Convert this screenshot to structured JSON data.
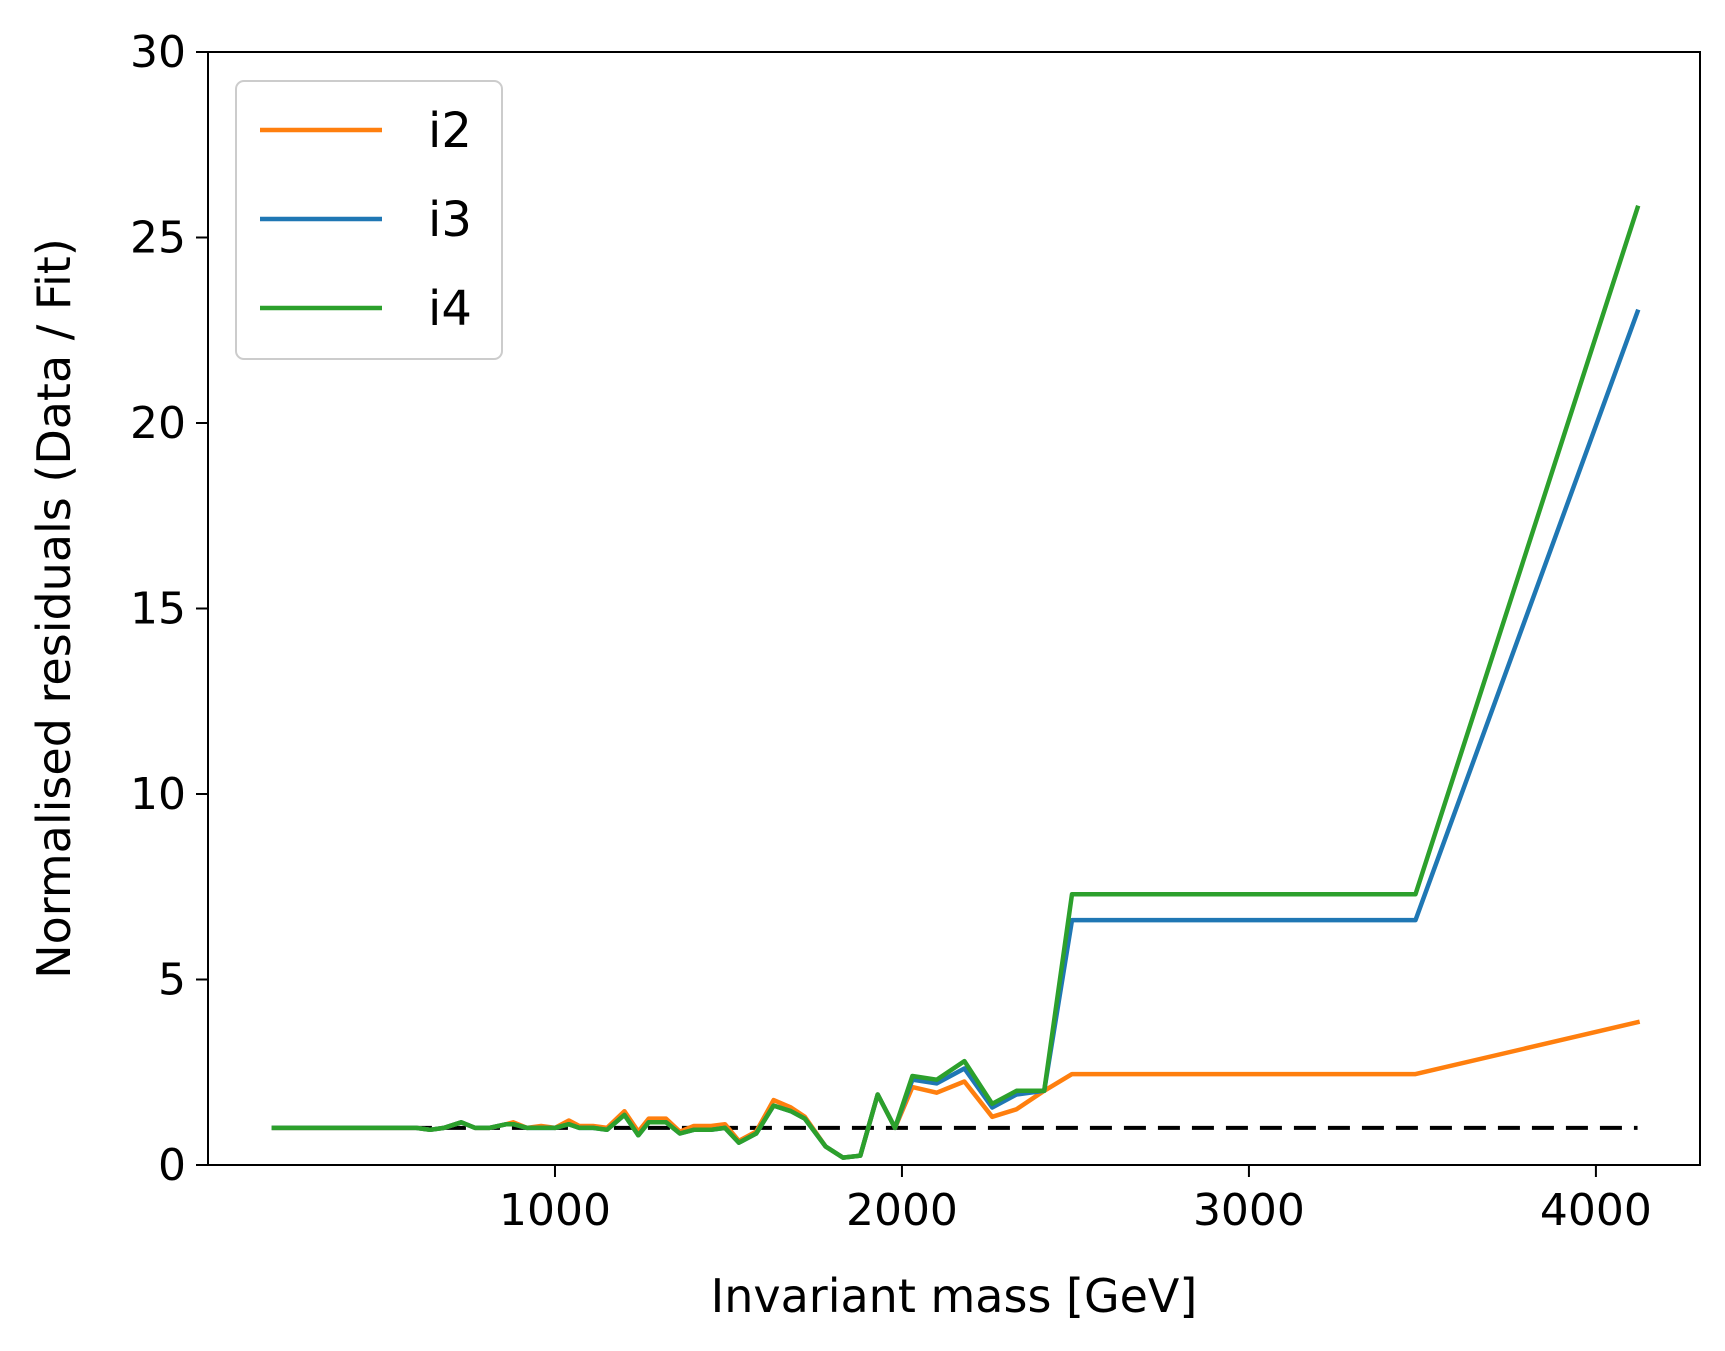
{
  "chart_data": {
    "type": "line",
    "title": "",
    "xlabel": "Invariant mass [GeV]",
    "ylabel": "Normalised residuals (Data / Fit)",
    "xlim": [
      0,
      4300
    ],
    "ylim": [
      0,
      30
    ],
    "xticks": [
      1000,
      2000,
      3000,
      4000
    ],
    "xtick_labels": [
      "1000",
      "2000",
      "3000",
      "4000"
    ],
    "yticks": [
      0,
      5,
      10,
      15,
      20,
      25,
      30
    ],
    "ytick_labels": [
      "0",
      "5",
      "10",
      "15",
      "20",
      "25",
      "30"
    ],
    "grid": false,
    "legend_position": "top-left",
    "reference_line": {
      "y": 1.0,
      "style": "dashed",
      "color": "#000000",
      "x_range": [
        190,
        4120
      ]
    },
    "x": [
      190,
      230,
      270,
      320,
      360,
      400,
      440,
      480,
      520,
      560,
      600,
      640,
      680,
      730,
      770,
      810,
      860,
      880,
      920,
      960,
      1000,
      1040,
      1070,
      1110,
      1150,
      1200,
      1240,
      1270,
      1320,
      1360,
      1400,
      1450,
      1490,
      1530,
      1580,
      1630,
      1680,
      1720,
      1780,
      1830,
      1880,
      1930,
      1980,
      2030,
      2100,
      2180,
      2260,
      2330,
      2410,
      2490,
      3480,
      4120
    ],
    "series": [
      {
        "name": "i2",
        "color": "#ff7f0e",
        "values": [
          1.0,
          1.0,
          1.0,
          1.0,
          1.0,
          1.0,
          1.0,
          1.0,
          1.0,
          1.0,
          1.0,
          0.95,
          1.0,
          1.15,
          1.0,
          1.0,
          1.1,
          1.15,
          1.0,
          1.05,
          1.0,
          1.2,
          1.05,
          1.05,
          1.0,
          1.45,
          0.9,
          1.25,
          1.25,
          0.9,
          1.05,
          1.05,
          1.1,
          0.65,
          0.9,
          1.75,
          1.55,
          1.3,
          0.5,
          0.2,
          0.25,
          1.9,
          1.0,
          2.1,
          1.95,
          2.25,
          1.3,
          1.5,
          2.0,
          2.45,
          2.45,
          3.85
        ]
      },
      {
        "name": "i3",
        "color": "#1f77b4",
        "values": [
          1.0,
          1.0,
          1.0,
          1.0,
          1.0,
          1.0,
          1.0,
          1.0,
          1.0,
          1.0,
          1.0,
          0.95,
          1.0,
          1.15,
          1.0,
          1.0,
          1.1,
          1.1,
          1.0,
          1.0,
          1.0,
          1.1,
          1.0,
          1.0,
          0.95,
          1.35,
          0.8,
          1.15,
          1.15,
          0.85,
          0.95,
          0.95,
          1.0,
          0.6,
          0.85,
          1.6,
          1.45,
          1.25,
          0.5,
          0.2,
          0.25,
          1.9,
          1.0,
          2.3,
          2.2,
          2.6,
          1.55,
          1.9,
          2.0,
          6.6,
          6.6,
          23.0
        ]
      },
      {
        "name": "i4",
        "color": "#2ca02c",
        "values": [
          1.0,
          1.0,
          1.0,
          1.0,
          1.0,
          1.0,
          1.0,
          1.0,
          1.0,
          1.0,
          1.0,
          0.95,
          1.0,
          1.15,
          1.0,
          1.0,
          1.1,
          1.1,
          1.0,
          1.0,
          1.0,
          1.1,
          1.0,
          1.0,
          0.95,
          1.35,
          0.8,
          1.15,
          1.15,
          0.85,
          0.95,
          0.95,
          1.0,
          0.6,
          0.85,
          1.6,
          1.45,
          1.25,
          0.5,
          0.2,
          0.25,
          1.9,
          1.0,
          2.4,
          2.3,
          2.8,
          1.65,
          2.0,
          2.0,
          7.3,
          7.3,
          25.8
        ]
      }
    ]
  }
}
